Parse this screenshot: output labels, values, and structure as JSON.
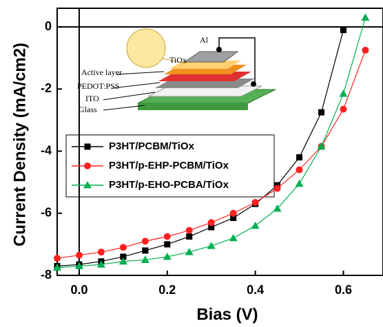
{
  "chart_data": {
    "type": "line",
    "x_label": "Bias (V)",
    "y_label": "Current Density (mA/cm2)",
    "xlim": [
      -0.05,
      0.69
    ],
    "ylim": [
      -8,
      0.6
    ],
    "xticks": [
      {
        "value": 0,
        "label": "0.0"
      },
      0.2,
      0.4,
      0.6
    ],
    "yticks": [
      0,
      -2,
      -4,
      -6,
      -8
    ],
    "x": [
      -0.05,
      0.0,
      0.05,
      0.1,
      0.15,
      0.2,
      0.25,
      0.3,
      0.35,
      0.4,
      0.45,
      0.5,
      0.55,
      0.6,
      0.65
    ],
    "series": [
      {
        "name": "P3HT/PCBM/TiOx",
        "color": "#000000",
        "marker": "square",
        "values": [
          -7.7,
          -7.65,
          -7.55,
          -7.4,
          -7.2,
          -7.0,
          -6.75,
          -6.45,
          -6.15,
          -5.7,
          -5.1,
          -4.2,
          -2.75,
          -0.1,
          null
        ]
      },
      {
        "name": "P3HT/p-EHP-PCBM/TiOx",
        "color": "#ff2020",
        "marker": "circle",
        "values": [
          -7.45,
          -7.35,
          -7.25,
          -7.1,
          -6.9,
          -6.75,
          -6.55,
          -6.3,
          -6.0,
          -5.65,
          -5.2,
          -4.6,
          -3.85,
          -2.65,
          -0.75
        ]
      },
      {
        "name": "P3HT/p-EHO-PCBA/TiOx",
        "color": "#00b050",
        "marker": "triangle",
        "values": [
          -7.75,
          -7.7,
          -7.65,
          -7.55,
          -7.5,
          -7.4,
          -7.25,
          -7.05,
          -6.8,
          -6.4,
          -5.85,
          -5.05,
          -3.85,
          -2.15,
          0.3
        ]
      }
    ],
    "inset_labels": [
      "Al",
      "TiOx",
      "Active layer",
      "PEDOT:PSS",
      "ITO",
      "Glass"
    ]
  }
}
